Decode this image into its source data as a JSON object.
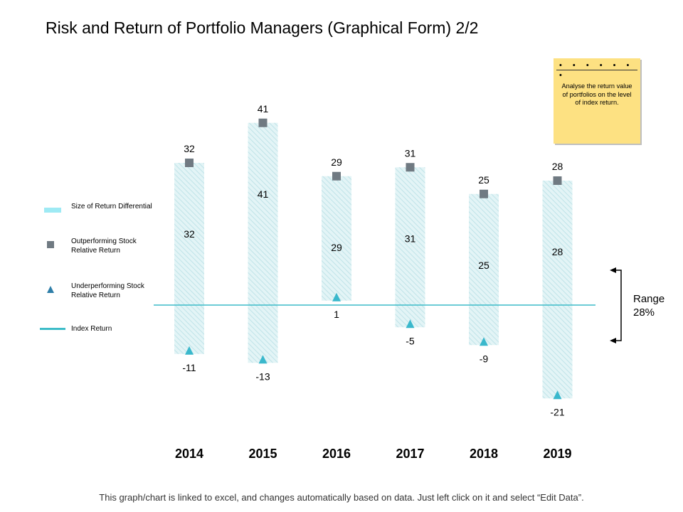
{
  "title": "Risk and Return of Portfolio Managers (Graphical Form) 2/2",
  "note": {
    "dots": "• • • • • • •",
    "text": "Analyse the return value of portfolios on the level of index return."
  },
  "legend": {
    "items": [
      {
        "label": "Size of Return Differential"
      },
      {
        "label": "Outperforming Stock Relative Return"
      },
      {
        "label": "Underperforming Stock Relative Return"
      },
      {
        "label": "Index Return"
      }
    ]
  },
  "range": {
    "label": "Range",
    "value": "28%"
  },
  "footer": "This graph/chart is linked to excel, and changes automatically based on data. Just left click on it and select “Edit Data”.",
  "colors": {
    "bar_fill": "#e3f4f6",
    "bar_stripe": "#bfe3e8",
    "outperform": "#707a82",
    "underperform": "#3ab8cc",
    "index_line": "#3dbcc8",
    "note_bg": "#fde182"
  },
  "chart_data": {
    "type": "bar",
    "categories": [
      "2014",
      "2015",
      "2016",
      "2017",
      "2018",
      "2019"
    ],
    "series": [
      {
        "name": "Outperforming Stock Relative Return",
        "values": [
          32,
          41,
          29,
          31,
          25,
          28
        ]
      },
      {
        "name": "Underperforming Stock Relative Return",
        "values": [
          -11,
          -13,
          1,
          -5,
          -9,
          -21
        ]
      }
    ],
    "differential_labels": [
      "32",
      "41",
      "29",
      "31",
      "25",
      "28"
    ],
    "index_return": 0,
    "range_annotation": "28%",
    "ylim": [
      -25,
      45
    ],
    "grid": false,
    "legend_position": "left"
  }
}
